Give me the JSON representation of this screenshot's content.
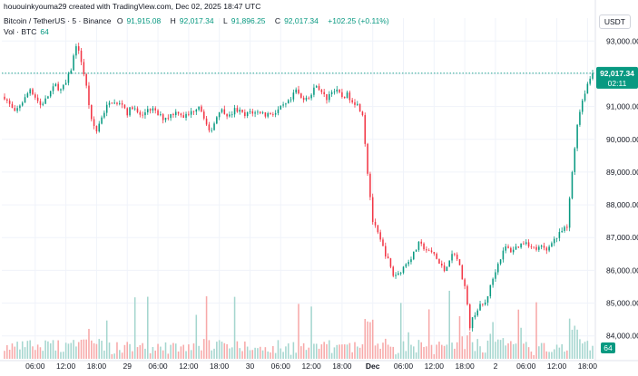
{
  "header": {
    "created_by": "hououinkyouma29 created with TradingView.com, Dec 02, 2025 18:47 UTC"
  },
  "legend": {
    "symbol": "Bitcoin / TetherUS · 5 · Binance",
    "open_label": "O",
    "open": "91,915.08",
    "high_label": "H",
    "high": "92,017.34",
    "low_label": "L",
    "low": "91,896.25",
    "close_label": "C",
    "close": "92,017.34",
    "change": "+102.25 (+0.11%)"
  },
  "volume_legend": {
    "label": "Vol · BTC",
    "value": "64"
  },
  "quote_currency": "USDT",
  "price_badge": {
    "price": "92,017.34",
    "countdown": "02:11"
  },
  "volume_badge": "64",
  "colors": {
    "up": "#089981",
    "down": "#f23645",
    "up_volume": "#a5d6cf",
    "down_volume": "#f7a9a9",
    "grid": "#f0f3fa",
    "axis_text": "#131722",
    "last_price_line": "#089981"
  },
  "chart_data": {
    "type": "candlestick",
    "series": [
      {
        "name": "Bitcoin / TetherUS"
      }
    ],
    "y_axis": {
      "range": [
        83300,
        93700
      ],
      "ticks": [
        "84,000.00",
        "85,000.00",
        "86,000.00",
        "87,000.00",
        "88,000.00",
        "89,000.00",
        "90,000.00",
        "91,000.00",
        "92,000.00",
        "93,000.00"
      ],
      "tick_values": [
        84000,
        85000,
        86000,
        87000,
        88000,
        89000,
        90000,
        91000,
        92000,
        93000
      ]
    },
    "x_axis": {
      "ticks": [
        {
          "label": "06:00",
          "hours": 6
        },
        {
          "label": "12:00",
          "hours": 12
        },
        {
          "label": "18:00",
          "hours": 18
        },
        {
          "label": "29",
          "hours": 24,
          "bold": false
        },
        {
          "label": "06:00",
          "hours": 30
        },
        {
          "label": "12:00",
          "hours": 36
        },
        {
          "label": "18:00",
          "hours": 42
        },
        {
          "label": "30",
          "hours": 48
        },
        {
          "label": "06:00",
          "hours": 54
        },
        {
          "label": "12:00",
          "hours": 60
        },
        {
          "label": "18:00",
          "hours": 66
        },
        {
          "label": "Dec",
          "hours": 72,
          "bold": true
        },
        {
          "label": "06:00",
          "hours": 78
        },
        {
          "label": "12:00",
          "hours": 84
        },
        {
          "label": "18:00",
          "hours": 90
        },
        {
          "label": "2",
          "hours": 96
        },
        {
          "label": "06:00",
          "hours": 102
        },
        {
          "label": "12:00",
          "hours": 108
        },
        {
          "label": "18:00",
          "hours": 114
        }
      ],
      "range_hours": [
        0,
        115
      ]
    },
    "price_path": [
      [
        0,
        91300
      ],
      [
        1,
        91050
      ],
      [
        2,
        90800
      ],
      [
        3,
        91050
      ],
      [
        4,
        91250
      ],
      [
        5,
        91550
      ],
      [
        6,
        91300
      ],
      [
        7,
        91050
      ],
      [
        8,
        91200
      ],
      [
        9,
        91450
      ],
      [
        10,
        91650
      ],
      [
        11,
        91500
      ],
      [
        12,
        91700
      ],
      [
        13,
        92150
      ],
      [
        14,
        92900
      ],
      [
        15,
        92400
      ],
      [
        16,
        91600
      ],
      [
        17,
        90550
      ],
      [
        18,
        90250
      ],
      [
        19,
        90700
      ],
      [
        20,
        91000
      ],
      [
        21,
        91150
      ],
      [
        22,
        91050
      ],
      [
        23,
        91100
      ],
      [
        24,
        90800
      ],
      [
        25,
        91000
      ],
      [
        26,
        90800
      ],
      [
        27,
        90700
      ],
      [
        28,
        90950
      ],
      [
        29,
        90900
      ],
      [
        30,
        90750
      ],
      [
        31,
        90650
      ],
      [
        32,
        90700
      ],
      [
        33,
        90800
      ],
      [
        34,
        90850
      ],
      [
        35,
        90700
      ],
      [
        36,
        90750
      ],
      [
        37,
        90900
      ],
      [
        38,
        91050
      ],
      [
        39,
        90700
      ],
      [
        40,
        90200
      ],
      [
        41,
        90500
      ],
      [
        42,
        90900
      ],
      [
        43,
        90850
      ],
      [
        44,
        90700
      ],
      [
        45,
        90900
      ],
      [
        46,
        90850
      ],
      [
        47,
        90700
      ],
      [
        48,
        90850
      ],
      [
        49,
        90800
      ],
      [
        50,
        90850
      ],
      [
        51,
        90750
      ],
      [
        52,
        90800
      ],
      [
        53,
        90800
      ],
      [
        54,
        90950
      ],
      [
        55,
        91050
      ],
      [
        56,
        91200
      ],
      [
        57,
        91500
      ],
      [
        58,
        91250
      ],
      [
        59,
        91300
      ],
      [
        60,
        91350
      ],
      [
        61,
        91700
      ],
      [
        62,
        91400
      ],
      [
        63,
        91250
      ],
      [
        64,
        91500
      ],
      [
        65,
        91450
      ],
      [
        66,
        91300
      ],
      [
        67,
        91350
      ],
      [
        68,
        91200
      ],
      [
        69,
        91050
      ],
      [
        70,
        90800
      ],
      [
        71,
        89000
      ],
      [
        72,
        87500
      ],
      [
        73,
        87100
      ],
      [
        74,
        86700
      ],
      [
        75,
        86300
      ],
      [
        76,
        85850
      ],
      [
        77,
        85900
      ],
      [
        78,
        86100
      ],
      [
        79,
        86300
      ],
      [
        80,
        86500
      ],
      [
        81,
        86800
      ],
      [
        82,
        86700
      ],
      [
        83,
        86550
      ],
      [
        84,
        86500
      ],
      [
        85,
        86200
      ],
      [
        86,
        86000
      ],
      [
        87,
        86350
      ],
      [
        88,
        86550
      ],
      [
        89,
        86100
      ],
      [
        90,
        85500
      ],
      [
        91,
        84300
      ],
      [
        92,
        84700
      ],
      [
        93,
        84900
      ],
      [
        94,
        85000
      ],
      [
        95,
        85500
      ],
      [
        96,
        86000
      ],
      [
        97,
        86400
      ],
      [
        98,
        86700
      ],
      [
        99,
        86600
      ],
      [
        100,
        86700
      ],
      [
        101,
        86800
      ],
      [
        102,
        86900
      ],
      [
        103,
        86700
      ],
      [
        104,
        86650
      ],
      [
        105,
        86700
      ],
      [
        106,
        86600
      ],
      [
        107,
        86900
      ],
      [
        108,
        87000
      ],
      [
        109,
        87200
      ],
      [
        110,
        87300
      ],
      [
        111,
        89000
      ],
      [
        112,
        90500
      ],
      [
        113,
        91200
      ],
      [
        114,
        91700
      ],
      [
        115,
        92017
      ]
    ],
    "last_price": 92017.34
  }
}
